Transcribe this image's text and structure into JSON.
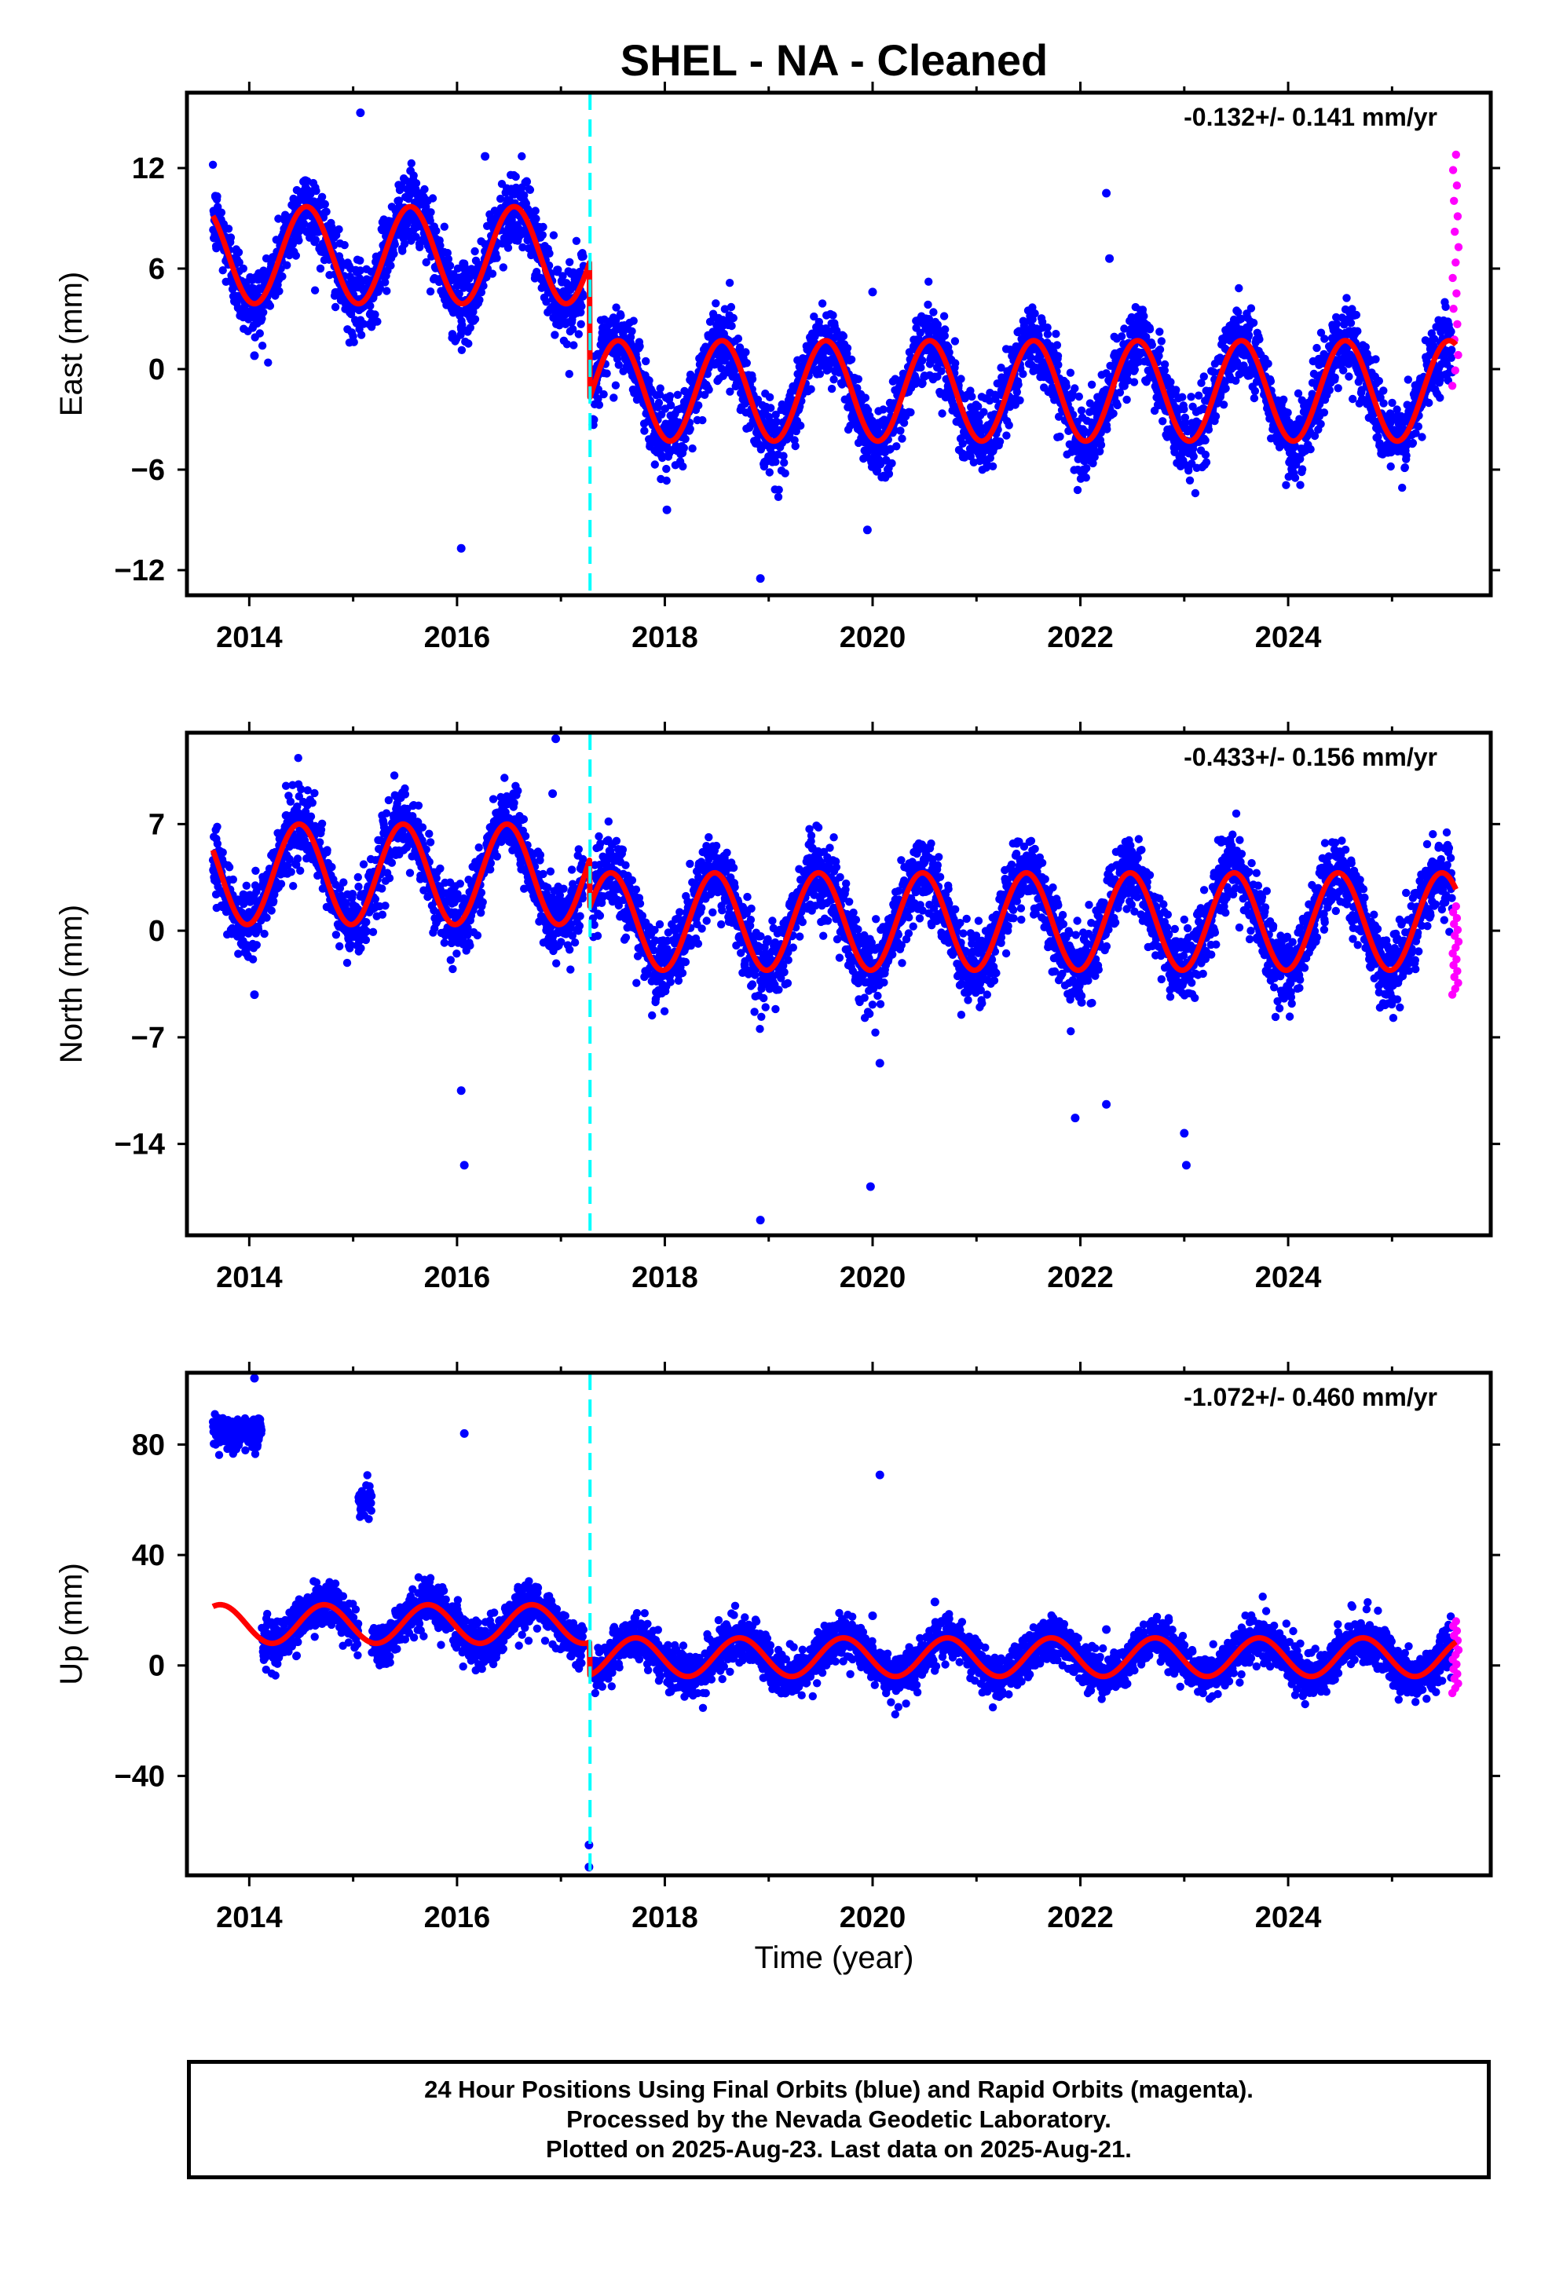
{
  "title": "SHEL  - NA - Cleaned",
  "colors": {
    "final_orbits": "#0000ff",
    "rapid_orbits": "#ff00ff",
    "model_fit": "#ff0000",
    "offset_marker": "#00ffff"
  },
  "xlabel": "Time (year)",
  "footer": {
    "line1": "24 Hour Positions Using Final Orbits (blue) and Rapid Orbits (magenta).",
    "line2": "Processed by the Nevada Geodetic Laboratory.",
    "line3": "Plotted on 2025-Aug-23. Last data on 2025-Aug-21."
  },
  "chart_data": [
    {
      "type": "scatter",
      "component": "east",
      "ylabel": "East (mm)",
      "rate_label": "-0.132+/- 0.141 mm/yr",
      "xlim": [
        2013.4,
        2025.95
      ],
      "ylim": [
        -13.5,
        16.5
      ],
      "yticks": [
        -12,
        -6,
        0,
        6,
        12
      ],
      "ytick_labels": [
        "−12",
        "−6",
        "0",
        "6",
        "12"
      ],
      "xticks": [
        2014,
        2016,
        2018,
        2020,
        2022,
        2024
      ],
      "xtick_labels": [
        "2014",
        "2016",
        "2018",
        "2020",
        "2022",
        "2024"
      ],
      "offset_epoch": 2017.28,
      "model": {
        "start": 2013.65,
        "end": 2025.62,
        "segments": [
          {
            "from": 2013.65,
            "to": 2017.28,
            "mean": 6.8,
            "amp": 2.9,
            "peak_phase": 0.55
          },
          {
            "from": 2017.28,
            "to": 2025.62,
            "mean": -1.3,
            "amp": 3.0,
            "peak_phase": 0.55
          }
        ]
      },
      "final_orbits": {
        "start": 2013.65,
        "end": 2025.58,
        "scatter_sd": 1.1
      },
      "rapid_orbits": {
        "start": 2025.58,
        "end": 2025.64,
        "y_range": [
          -1.0,
          12.8
        ]
      },
      "outliers": [
        [
          2015.07,
          15.3
        ],
        [
          2016.04,
          -10.7
        ],
        [
          2016.27,
          12.7
        ],
        [
          2018.02,
          -8.4
        ],
        [
          2018.92,
          -12.5
        ],
        [
          2019.95,
          -9.6
        ],
        [
          2022.25,
          10.5
        ],
        [
          2022.28,
          6.6
        ],
        [
          2014.05,
          0.8
        ],
        [
          2020.0,
          4.6
        ]
      ]
    },
    {
      "type": "scatter",
      "component": "north",
      "ylabel": "North (mm)",
      "rate_label": "-0.433+/- 0.156 mm/yr",
      "xlim": [
        2013.4,
        2025.95
      ],
      "ylim": [
        -20,
        13
      ],
      "yticks": [
        -14,
        -7,
        0,
        7
      ],
      "ytick_labels": [
        "−14",
        "−7",
        "0",
        "7"
      ],
      "xticks": [
        2014,
        2016,
        2018,
        2020,
        2022,
        2024
      ],
      "xtick_labels": [
        "2014",
        "2016",
        "2018",
        "2020",
        "2022",
        "2024"
      ],
      "offset_epoch": 2017.28,
      "model": {
        "start": 2013.65,
        "end": 2025.62,
        "segments": [
          {
            "from": 2013.65,
            "to": 2017.28,
            "mean": 3.7,
            "amp": 3.3,
            "peak_phase": 0.48
          },
          {
            "from": 2017.28,
            "to": 2025.62,
            "mean": 0.6,
            "amp": 3.2,
            "peak_phase": 0.48
          }
        ]
      },
      "final_orbits": {
        "start": 2013.65,
        "end": 2025.58,
        "scatter_sd": 1.2
      },
      "rapid_orbits": {
        "start": 2025.58,
        "end": 2025.64,
        "y_range": [
          -4.2,
          1.6
        ]
      },
      "outliers": [
        [
          2016.95,
          12.6
        ],
        [
          2016.92,
          9.0
        ],
        [
          2016.04,
          -10.5
        ],
        [
          2016.07,
          -15.4
        ],
        [
          2018.92,
          -19.0
        ],
        [
          2019.98,
          -16.8
        ],
        [
          2020.07,
          -8.7
        ],
        [
          2021.95,
          -12.3
        ],
        [
          2022.25,
          -11.4
        ],
        [
          2023.0,
          -13.3
        ],
        [
          2023.02,
          -15.4
        ],
        [
          2014.05,
          -4.2
        ]
      ]
    },
    {
      "type": "scatter",
      "component": "up",
      "ylabel": "Up (mm)",
      "rate_label": "-1.072+/- 0.460 mm/yr",
      "xlim": [
        2013.4,
        2025.95
      ],
      "ylim": [
        -76,
        106
      ],
      "yticks": [
        -40,
        0,
        40,
        80
      ],
      "ytick_labels": [
        "−40",
        "0",
        "40",
        "80"
      ],
      "xticks": [
        2014,
        2016,
        2018,
        2020,
        2022,
        2024
      ],
      "xtick_labels": [
        "2014",
        "2016",
        "2018",
        "2020",
        "2022",
        "2024"
      ],
      "offset_epoch": 2017.28,
      "model": {
        "start": 2013.65,
        "end": 2025.62,
        "segments": [
          {
            "from": 2013.65,
            "to": 2017.28,
            "mean": 15.0,
            "amp": 7.0,
            "peak_phase": 0.72
          },
          {
            "from": 2017.28,
            "to": 2025.62,
            "mean": 3.0,
            "amp": 7.0,
            "peak_phase": 0.72
          }
        ]
      },
      "final_orbits": {
        "start": 2013.65,
        "end": 2025.58,
        "scatter_sd": 4.0
      },
      "early_cluster": {
        "from": 2013.65,
        "to": 2014.12,
        "center": 85,
        "spread": 5
      },
      "mid_cluster": {
        "from": 2015.05,
        "to": 2015.18,
        "center": 59,
        "spread": 5
      },
      "rapid_orbits": {
        "start": 2025.58,
        "end": 2025.64,
        "y_range": [
          -10,
          16
        ]
      },
      "outliers": [
        [
          2014.05,
          104
        ],
        [
          2016.07,
          84
        ],
        [
          2020.07,
          69
        ],
        [
          2017.27,
          -65
        ],
        [
          2017.27,
          -73
        ],
        [
          2020.6,
          23
        ],
        [
          2020.0,
          18
        ],
        [
          2022.25,
          13
        ]
      ]
    }
  ]
}
